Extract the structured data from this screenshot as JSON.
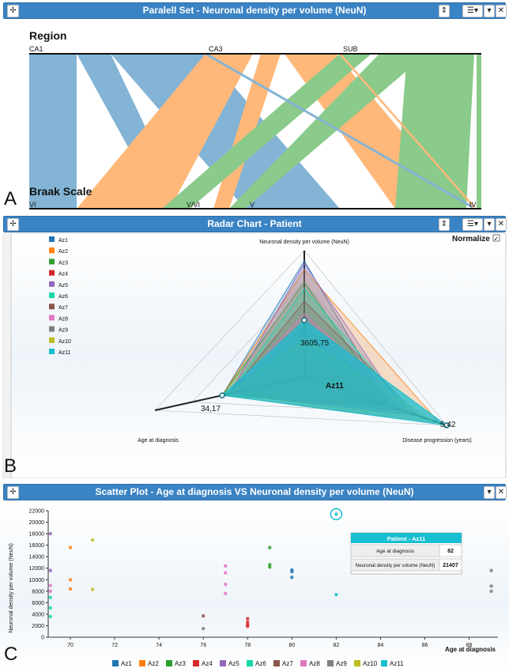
{
  "colors": {
    "titlebar": "#3a83c4",
    "az": [
      "#1f77b4",
      "#ff7f0e",
      "#2ca02c",
      "#d62728",
      "#9467bd",
      "#17d9a8",
      "#8c564b",
      "#e377c2",
      "#7f7f7f",
      "#bcbd22",
      "#17becf"
    ]
  },
  "panelA": {
    "letter": "A",
    "title": "Paralell Set - Neuronal density per volume (NeuN)",
    "top_axis": "Region",
    "bottom_axis": "Braak Scale",
    "top_categories": [
      "CA1",
      "CA3",
      "SUB"
    ],
    "bottom_categories": [
      "VI",
      "V/VI",
      "V",
      "IV"
    ],
    "icons": [
      "move-icon",
      "scroll-icon",
      "list-menu-icon",
      "minimize-icon",
      "close-icon"
    ]
  },
  "panelB": {
    "letter": "B",
    "title": "Radar Chart - Patient",
    "normalize_label": "Normalize",
    "legend": [
      "Az1",
      "Az2",
      "Az3",
      "Az4",
      "Az5",
      "Az6",
      "Az7",
      "Az8",
      "Az9",
      "Az10",
      "Az11"
    ],
    "axes": [
      "Neuronal density per volume (NeuN)",
      "Age at diagnosis",
      "Disease progression (years)"
    ],
    "highlight": {
      "name": "Az11",
      "neun": "3605,75",
      "age": "34,17",
      "progression": "5,42"
    }
  },
  "panelC": {
    "letter": "C",
    "title": "Scatter Plot - Age at diagnosis VS Neuronal density per volume (NeuN)",
    "tooltip": {
      "header": "Patient - Az11",
      "rows": [
        {
          "label": "Age at diagnosis",
          "value": "82"
        },
        {
          "label": "Neuronal density per volume (NeuN)",
          "value": "21407"
        }
      ]
    }
  },
  "chart_data": [
    {
      "type": "parallel_set",
      "title": "Paralell Set - Neuronal density per volume (NeuN)",
      "dimensions": [
        "Region",
        "Braak Scale"
      ],
      "categories": {
        "Region": [
          "CA1",
          "CA3",
          "SUB"
        ],
        "Braak Scale": [
          "VI",
          "V/VI",
          "V",
          "IV"
        ]
      }
    },
    {
      "type": "radar",
      "title": "Radar Chart - Patient",
      "axes": [
        "Neuronal density per volume (NeuN)",
        "Age at diagnosis",
        "Disease progression (years)"
      ],
      "series": [
        {
          "name": "Az1",
          "values": [
            0.92,
            0.55,
            0.6
          ]
        },
        {
          "name": "Az2",
          "values": [
            0.85,
            0.55,
            0.95
          ]
        },
        {
          "name": "Az3",
          "values": [
            0.75,
            0.55,
            0.6
          ]
        },
        {
          "name": "Az4",
          "values": [
            0.15,
            0.5,
            0.7
          ]
        },
        {
          "name": "Az5",
          "values": [
            0.9,
            0.5,
            0.7
          ]
        },
        {
          "name": "Az6",
          "values": [
            0.7,
            0.5,
            0.75
          ]
        },
        {
          "name": "Az7",
          "values": [
            0.6,
            0.5,
            0.8
          ]
        },
        {
          "name": "Az8",
          "values": [
            0.5,
            0.5,
            0.75
          ]
        },
        {
          "name": "Az9",
          "values": [
            0.4,
            0.5,
            0.7
          ]
        },
        {
          "name": "Az10",
          "values": [
            0.3,
            0.5,
            0.9
          ]
        },
        {
          "name": "Az11",
          "values": [
            0.45,
            0.55,
            1.0
          ]
        }
      ],
      "labels": [
        "3605,75",
        "34,17",
        "5,42"
      ]
    },
    {
      "type": "scatter",
      "title": "Scatter Plot - Age at diagnosis VS Neuronal density per volume (NeuN)",
      "xlabel": "Age at diagnosis",
      "ylabel": "Neuronal density per volume (NeuN)",
      "xlim": [
        69,
        89.3
      ],
      "ylim": [
        0,
        22000
      ],
      "xticks": [
        70,
        72,
        74,
        76,
        78,
        80,
        82,
        84,
        86,
        88
      ],
      "yticks": [
        0,
        2000,
        4000,
        6000,
        8000,
        10000,
        12000,
        14000,
        16000,
        18000,
        20000,
        22000
      ],
      "legend": [
        "Az1",
        "Az2",
        "Az3",
        "Az4",
        "Az5",
        "Az6",
        "Az7",
        "Az8",
        "Az9",
        "Az10",
        "Az11"
      ],
      "series": [
        {
          "name": "Az1",
          "points": [
            [
              80,
              11700
            ],
            [
              80,
              11400
            ],
            [
              80,
              10400
            ]
          ]
        },
        {
          "name": "Az2",
          "points": [
            [
              70,
              15600
            ],
            [
              70,
              10000
            ],
            [
              70,
              8400
            ]
          ]
        },
        {
          "name": "Az3",
          "points": [
            [
              79,
              15600
            ],
            [
              79,
              12600
            ],
            [
              79,
              12200
            ]
          ]
        },
        {
          "name": "Az4",
          "points": [
            [
              78,
              3200
            ],
            [
              78,
              2600
            ],
            [
              78,
              2200
            ],
            [
              78,
              1900
            ]
          ]
        },
        {
          "name": "Az5",
          "points": [
            [
              69.1,
              18000
            ],
            [
              69.1,
              11600
            ]
          ]
        },
        {
          "name": "Az6",
          "points": [
            [
              69.1,
              6900
            ],
            [
              69.1,
              5100
            ],
            [
              69.1,
              3600
            ]
          ]
        },
        {
          "name": "Az7",
          "points": [
            [
              76,
              3700
            ]
          ]
        },
        {
          "name": "Az8",
          "points": [
            [
              77,
              12400
            ],
            [
              77,
              11200
            ],
            [
              77,
              9200
            ],
            [
              77,
              7600
            ],
            [
              69.1,
              9000
            ],
            [
              69.1,
              8000
            ]
          ]
        },
        {
          "name": "Az9",
          "points": [
            [
              76,
              1500
            ],
            [
              89,
              11600
            ],
            [
              89,
              8900
            ],
            [
              89,
              8000
            ]
          ]
        },
        {
          "name": "Az10",
          "points": [
            [
              71,
              16900
            ],
            [
              71,
              8300
            ]
          ]
        },
        {
          "name": "Az11",
          "points": [
            [
              82,
              21407
            ],
            [
              82,
              7400
            ]
          ]
        }
      ]
    }
  ]
}
